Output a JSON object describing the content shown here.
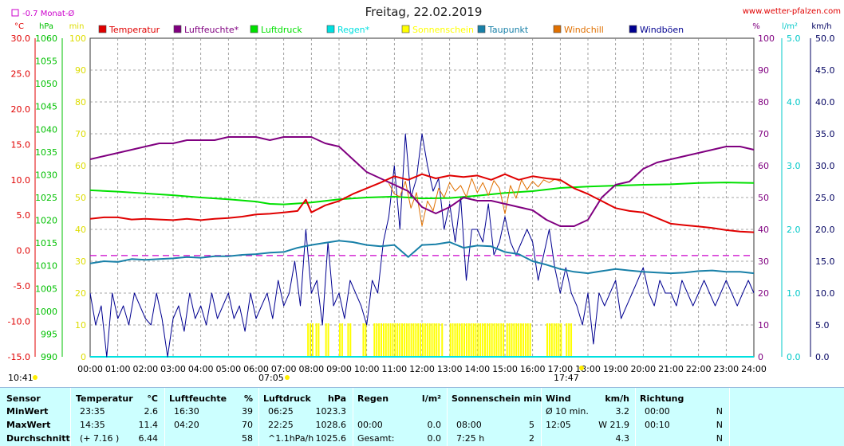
{
  "header": {
    "title": "Freitag, 22.02.2019",
    "site": "www.wetter-pfalzen.com",
    "month_avg": "-0.7 Monat-Ø",
    "left_start_time": "10:41",
    "sunrise_time": "07:05",
    "sunset_time": "17:47"
  },
  "colors": {
    "temperature": "#e00000",
    "humidity": "#800080",
    "pressure": "#00e000",
    "rain": "#00e0e0",
    "sunshine": "#ffff00",
    "dewpoint": "#1880a8",
    "windchill": "#e07000",
    "gusts": "#000090",
    "month_avg": "#cc00cc"
  },
  "legend": [
    {
      "key": "temperature",
      "label": "Temperatur",
      "color": "#e00000"
    },
    {
      "key": "humidity",
      "label": "Luftfeuchte*",
      "color": "#800080"
    },
    {
      "key": "pressure",
      "label": "Luftdruck",
      "color": "#00e000"
    },
    {
      "key": "rain",
      "label": "Regen*",
      "color": "#00e0e0"
    },
    {
      "key": "sunshine",
      "label": "Sonnenschein",
      "color": "#ffff00"
    },
    {
      "key": "dewpoint",
      "label": "Taupunkt",
      "color": "#1880a8"
    },
    {
      "key": "windchill",
      "label": "Windchill",
      "color": "#e07000"
    },
    {
      "key": "gusts",
      "label": "Windböen",
      "color": "#000090"
    }
  ],
  "chart_data": {
    "type": "line",
    "title": "Freitag, 22.02.2019",
    "x_ticks": [
      "00:00",
      "01:00",
      "02:00",
      "03:00",
      "04:00",
      "05:00",
      "06:00",
      "07:00",
      "08:00",
      "09:00",
      "10:00",
      "11:00",
      "12:00",
      "13:00",
      "14:00",
      "15:00",
      "16:00",
      "17:00",
      "18:00",
      "19:00",
      "20:00",
      "21:00",
      "22:00",
      "23:00",
      "24:00"
    ],
    "x_range_hours": [
      0,
      24
    ],
    "grid": true,
    "month_avg_temperature": -0.7,
    "axes": {
      "temperature": {
        "unit": "°C",
        "range": [
          -15,
          30
        ],
        "ticks": [
          "30.0",
          "25.0",
          "20.0",
          "15.0",
          "10.0",
          "5.0",
          "0.0",
          "-5.0",
          "-10.0",
          "-15.0"
        ]
      },
      "pressure": {
        "unit": "hPa",
        "range": [
          990,
          1060
        ],
        "ticks": [
          "1060",
          "1055",
          "1050",
          "1045",
          "1040",
          "1035",
          "1030",
          "1025",
          "1020",
          "1015",
          "1010",
          "1005",
          "1000",
          "995",
          "990"
        ]
      },
      "sunshine": {
        "unit": "min",
        "range": [
          0,
          100
        ],
        "ticks": [
          "100",
          "90",
          "80",
          "70",
          "60",
          "50",
          "40",
          "30",
          "20",
          "10",
          "0"
        ]
      },
      "humidity": {
        "unit": "%",
        "range": [
          0,
          100
        ],
        "ticks": [
          "100",
          "90",
          "80",
          "70",
          "60",
          "50",
          "40",
          "30",
          "20",
          "10",
          "0"
        ]
      },
      "rain": {
        "unit": "l/m²",
        "range": [
          0,
          5
        ],
        "ticks": [
          "5.0",
          "4.0",
          "3.0",
          "2.0",
          "1.0",
          "0.0"
        ]
      },
      "wind": {
        "unit": "km/h",
        "range": [
          0,
          50
        ],
        "ticks": [
          "50.0",
          "45.0",
          "40.0",
          "35.0",
          "30.0",
          "25.0",
          "20.0",
          "15.0",
          "10.0",
          "5.0",
          "0.0"
        ]
      }
    },
    "series": [
      {
        "name": "Temperatur",
        "axis": "temperature",
        "x": [
          0,
          0.5,
          1,
          1.5,
          2,
          2.5,
          3,
          3.5,
          4,
          4.5,
          5,
          5.5,
          6,
          6.5,
          7,
          7.5,
          7.8,
          8,
          8.5,
          9,
          9.5,
          10,
          10.5,
          11,
          11.5,
          12,
          12.5,
          13,
          13.5,
          14,
          14.5,
          15,
          15.5,
          16,
          16.5,
          17,
          17.5,
          18,
          18.5,
          19,
          19.5,
          20,
          20.5,
          21,
          21.5,
          22,
          22.5,
          23,
          23.5,
          24
        ],
        "y": [
          4.5,
          4.7,
          4.7,
          4.4,
          4.5,
          4.4,
          4.3,
          4.5,
          4.3,
          4.5,
          4.6,
          4.8,
          5.1,
          5.2,
          5.4,
          5.6,
          7.2,
          5.4,
          6.4,
          7.0,
          8.0,
          8.8,
          9.6,
          10.5,
          10.0,
          10.8,
          10.2,
          10.6,
          10.4,
          10.6,
          10.0,
          10.8,
          10.0,
          10.5,
          10.2,
          10.0,
          8.8,
          8.0,
          7.0,
          6.0,
          5.6,
          5.4,
          4.6,
          3.8,
          3.6,
          3.4,
          3.2,
          2.9,
          2.7,
          2.6
        ]
      },
      {
        "name": "Luftfeuchte*",
        "axis": "humidity",
        "x": [
          0,
          0.5,
          1,
          1.5,
          2,
          2.5,
          3,
          3.5,
          4,
          4.5,
          5,
          5.5,
          6,
          6.5,
          7,
          7.5,
          8,
          8.5,
          9,
          9.5,
          10,
          10.5,
          11,
          11.5,
          12,
          12.5,
          13,
          13.5,
          14,
          14.5,
          15,
          15.5,
          16,
          16.5,
          17,
          17.5,
          18,
          18.5,
          19,
          19.5,
          20,
          20.5,
          21,
          21.5,
          22,
          22.5,
          23,
          23.5,
          24
        ],
        "y": [
          62,
          63,
          64,
          65,
          66,
          67,
          67,
          68,
          68,
          68,
          69,
          69,
          69,
          68,
          69,
          69,
          69,
          67,
          66,
          62,
          58,
          56,
          54,
          52,
          47,
          45,
          47,
          50,
          49,
          49,
          48,
          47,
          46,
          43,
          41,
          41,
          43,
          50,
          54,
          55,
          59,
          61,
          62,
          63,
          64,
          65,
          66,
          66,
          65
        ]
      },
      {
        "name": "Luftdruck",
        "axis": "pressure",
        "x": [
          0,
          1,
          2,
          3,
          4,
          5,
          6,
          6.5,
          7,
          8,
          9,
          10,
          11,
          12,
          13,
          14,
          15,
          16,
          17,
          18,
          19,
          20,
          21,
          22,
          23,
          24
        ],
        "y": [
          1026.6,
          1026.3,
          1025.9,
          1025.5,
          1025.0,
          1024.6,
          1024.1,
          1023.6,
          1023.5,
          1023.9,
          1024.6,
          1025.0,
          1025.2,
          1024.8,
          1024.9,
          1025.4,
          1026.0,
          1026.4,
          1027.1,
          1027.4,
          1027.6,
          1027.8,
          1027.9,
          1028.2,
          1028.3,
          1028.2
        ]
      },
      {
        "name": "Regen*",
        "axis": "rain",
        "x": [
          0,
          24
        ],
        "y": [
          0,
          0
        ]
      },
      {
        "name": "Taupunkt",
        "axis": "temperature",
        "x": [
          0,
          0.5,
          1,
          1.5,
          2,
          2.5,
          3,
          3.5,
          4,
          4.5,
          5,
          5.5,
          6,
          6.5,
          7,
          7.5,
          8,
          8.5,
          9,
          9.5,
          10,
          10.5,
          11,
          11.5,
          12,
          12.5,
          13,
          13.5,
          14,
          14.5,
          15,
          15.5,
          16,
          16.5,
          17,
          17.5,
          18,
          18.5,
          19,
          19.5,
          20,
          20.5,
          21,
          21.5,
          22,
          22.5,
          23,
          23.5,
          24
        ],
        "y": [
          -1.8,
          -1.5,
          -1.6,
          -1.2,
          -1.3,
          -1.2,
          -1.1,
          -0.9,
          -1.0,
          -0.8,
          -0.8,
          -0.6,
          -0.5,
          -0.3,
          -0.2,
          0.4,
          0.8,
          1.1,
          1.4,
          1.2,
          0.8,
          0.6,
          0.8,
          -0.9,
          0.8,
          0.9,
          1.2,
          0.4,
          0.7,
          0.6,
          -0.2,
          -0.5,
          -1.5,
          -2.0,
          -2.6,
          -3.0,
          -3.2,
          -2.9,
          -2.6,
          -2.8,
          -3.0,
          -3.1,
          -3.2,
          -3.1,
          -2.9,
          -2.8,
          -3.0,
          -3.0,
          -3.2
        ]
      },
      {
        "name": "Windchill",
        "axis": "temperature",
        "x": [
          10.8,
          11,
          11.2,
          11.4,
          11.6,
          11.8,
          12,
          12.2,
          12.4,
          12.6,
          12.8,
          13,
          13.2,
          13.4,
          13.6,
          13.8,
          14,
          14.2,
          14.4,
          14.6,
          14.8,
          15,
          15.2,
          15.4,
          15.6,
          15.8,
          16,
          16.2,
          16.4,
          16.6,
          16.8,
          17
        ],
        "y": [
          9.5,
          8.0,
          7.6,
          9.8,
          6.0,
          8.2,
          3.5,
          7.0,
          5.6,
          8.8,
          7.5,
          9.6,
          8.4,
          9.2,
          7.6,
          10.2,
          8.2,
          9.6,
          7.8,
          9.9,
          8.8,
          5.2,
          9.2,
          7.4,
          10.0,
          8.6,
          9.8,
          9.0,
          10.0,
          9.6,
          10.1,
          9.8
        ]
      },
      {
        "name": "Windböen",
        "axis": "wind",
        "x": [
          0,
          0.2,
          0.4,
          0.6,
          0.8,
          1,
          1.2,
          1.4,
          1.6,
          1.8,
          2,
          2.2,
          2.4,
          2.6,
          2.8,
          3,
          3.2,
          3.4,
          3.6,
          3.8,
          4,
          4.2,
          4.4,
          4.6,
          4.8,
          5,
          5.2,
          5.4,
          5.6,
          5.8,
          6,
          6.2,
          6.4,
          6.6,
          6.8,
          7,
          7.2,
          7.4,
          7.6,
          7.8,
          8,
          8.2,
          8.4,
          8.6,
          8.8,
          9,
          9.2,
          9.4,
          9.6,
          9.8,
          10,
          10.2,
          10.4,
          10.6,
          10.8,
          11,
          11.2,
          11.4,
          11.6,
          11.8,
          12,
          12.2,
          12.4,
          12.6,
          12.8,
          13,
          13.2,
          13.4,
          13.6,
          13.8,
          14,
          14.2,
          14.4,
          14.6,
          14.8,
          15,
          15.2,
          15.4,
          15.6,
          15.8,
          16,
          16.2,
          16.4,
          16.6,
          16.8,
          17,
          17.2,
          17.4,
          17.6,
          17.8,
          18,
          18.2,
          18.4,
          18.6,
          18.8,
          19,
          19.2,
          19.4,
          19.6,
          19.8,
          20,
          20.2,
          20.4,
          20.6,
          20.8,
          21,
          21.2,
          21.4,
          21.6,
          21.8,
          22,
          22.2,
          22.4,
          22.6,
          22.8,
          23,
          23.2,
          23.4,
          23.6,
          23.8,
          24
        ],
        "y": [
          10,
          5,
          8,
          0,
          10,
          6,
          8,
          5,
          10,
          8,
          6,
          5,
          10,
          6,
          0,
          6,
          8,
          4,
          10,
          6,
          8,
          5,
          10,
          6,
          8,
          10,
          6,
          8,
          4,
          10,
          6,
          8,
          10,
          6,
          12,
          8,
          10,
          15,
          8,
          20,
          10,
          12,
          5,
          18,
          8,
          10,
          6,
          12,
          10,
          8,
          5,
          12,
          10,
          18,
          22,
          30,
          20,
          35,
          25,
          28,
          35,
          30,
          26,
          28,
          20,
          24,
          18,
          25,
          12,
          20,
          20,
          18,
          24,
          16,
          18,
          22,
          18,
          16,
          18,
          20,
          18,
          12,
          16,
          20,
          14,
          10,
          14,
          10,
          8,
          5,
          10,
          2,
          10,
          8,
          10,
          12,
          6,
          8,
          10,
          12,
          14,
          10,
          8,
          12,
          10,
          10,
          8,
          12,
          10,
          8,
          10,
          12,
          10,
          8,
          10,
          12,
          10,
          8,
          10,
          12,
          10
        ]
      }
    ],
    "sunshine_bars": {
      "minutes_per_10min": 10,
      "intervals": [
        [
          7.85,
          8.05
        ],
        [
          8.15,
          8.3
        ],
        [
          8.5,
          8.6
        ],
        [
          9.0,
          9.1
        ],
        [
          9.3,
          9.45
        ],
        [
          9.85,
          10.0
        ],
        [
          10.25,
          12.6
        ],
        [
          12.7,
          12.75
        ],
        [
          13.0,
          15.0
        ],
        [
          15.05,
          15.95
        ],
        [
          16.5,
          17.05
        ],
        [
          17.2,
          17.4
        ]
      ]
    },
    "annotations": [
      "07:05",
      "17:47",
      "10:41"
    ]
  },
  "stats": {
    "headers": {
      "sensor": "Sensor",
      "temperature": "Temperatur",
      "temp_unit": "°C",
      "humidity": "Luftfeuchte",
      "hum_unit": "%",
      "pressure": "Luftdruck",
      "press_unit": "hPa",
      "rain": "Regen",
      "rain_unit": "l/m²",
      "sun": "Sonnenschein min",
      "wind": "Wind",
      "wind_unit": "km/h",
      "direction": "Richtung"
    },
    "rows": [
      {
        "label": "MinWert",
        "temp_time": "23:35",
        "temp_val": "2.6",
        "hum_time": "16:30",
        "hum_val": "39",
        "press_time": "06:25",
        "press_val": "1023.3",
        "rain_time": "",
        "rain_val": "",
        "sun_time": "",
        "sun_val": "",
        "wind_time": "Ø 10 min.",
        "wind_val": "3.2",
        "dir_time": "00:00",
        "dir_val": "N"
      },
      {
        "label": "MaxWert",
        "temp_time": "14:35",
        "temp_val": "11.4",
        "hum_time": "04:20",
        "hum_val": "70",
        "press_time": "22:25",
        "press_val": "1028.6",
        "rain_time": "00:00",
        "rain_val": "0.0",
        "sun_time": "08:00",
        "sun_val": "5",
        "wind_time": "12:05",
        "wind_val": "W 21.9",
        "dir_time": "00:10",
        "dir_val": "N"
      },
      {
        "label": "Durchschnitt",
        "temp_time": "(+ 7.16 )",
        "temp_val": "6.44",
        "hum_time": "",
        "hum_val": "58",
        "press_time": "^1.1hPa/h",
        "press_val": "1025.6",
        "rain_time": "Gesamt:",
        "rain_val": "0.0",
        "sun_time": "7:25 h",
        "sun_val": "2",
        "wind_time": "",
        "wind_val": "4.3",
        "dir_time": "",
        "dir_val": "N"
      }
    ]
  }
}
